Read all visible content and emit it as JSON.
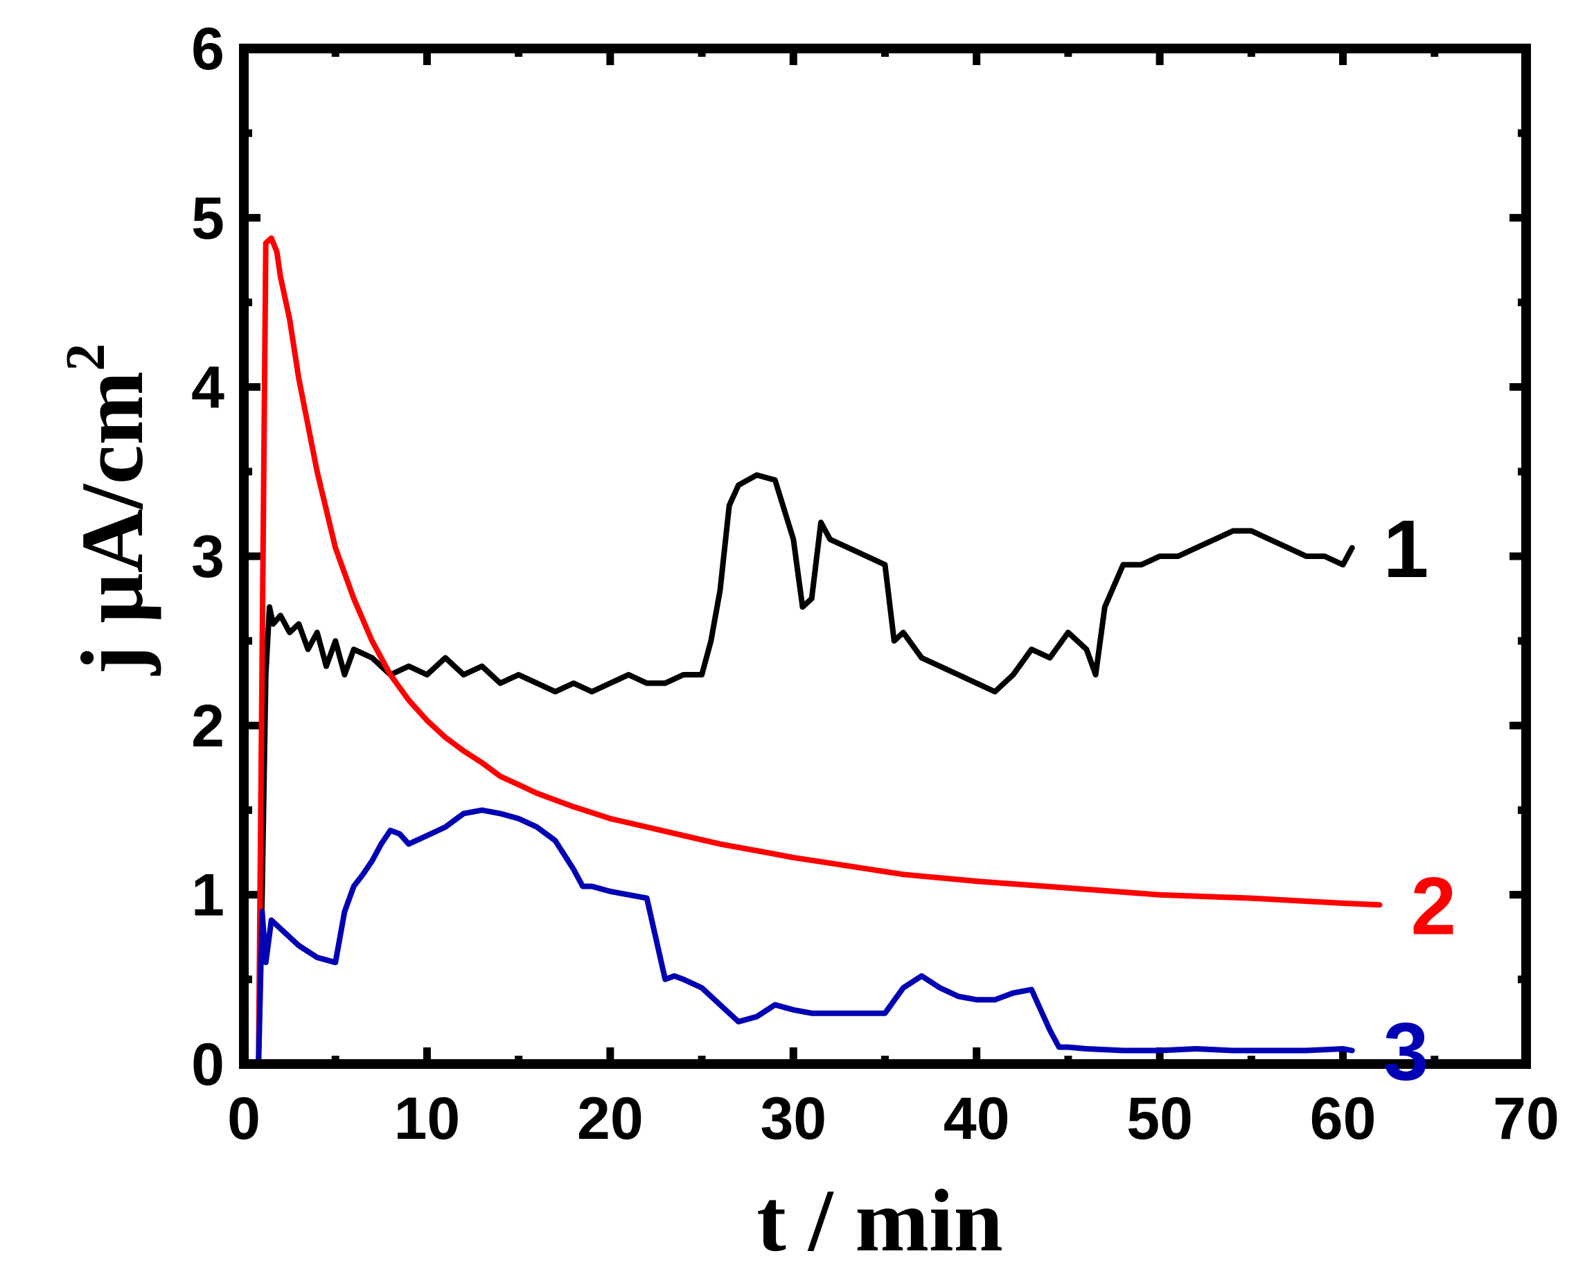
{
  "chart_data": {
    "type": "line",
    "title": "",
    "xlabel": "t / min",
    "ylabel": "j μA/cm",
    "ylabel_superscript": "2",
    "xlim": [
      0,
      70
    ],
    "ylim": [
      0,
      6
    ],
    "x_ticks": [
      0,
      10,
      20,
      30,
      40,
      50,
      60,
      70
    ],
    "y_ticks": [
      0,
      1,
      2,
      3,
      4,
      5,
      6
    ],
    "x_tick_labels": [
      "0",
      "10",
      "20",
      "30",
      "40",
      "50",
      "60",
      "70"
    ],
    "y_tick_labels": [
      "0",
      "1",
      "2",
      "3",
      "4",
      "5",
      "6"
    ],
    "grid": false,
    "legend": "none (series labelled at right end of each curve)",
    "series": [
      {
        "name": "1",
        "color": "#000000",
        "x": [
          0.8,
          1.0,
          1.2,
          1.4,
          1.6,
          2.0,
          2.5,
          3.0,
          3.5,
          4.0,
          4.5,
          5.0,
          5.5,
          6.0,
          7.0,
          8.0,
          9.0,
          10.0,
          11.0,
          12.0,
          13.0,
          14.0,
          15.0,
          16.0,
          17.0,
          18.0,
          19.0,
          20.0,
          21.0,
          22.0,
          23.0,
          24.0,
          25.0,
          25.5,
          26.0,
          26.5,
          27.0,
          28.0,
          29.0,
          30.0,
          30.5,
          31.0,
          31.5,
          32.0,
          33.0,
          34.0,
          35.0,
          35.5,
          36.0,
          37.0,
          38.0,
          39.0,
          40.0,
          41.0,
          42.0,
          43.0,
          44.0,
          45.0,
          46.0,
          46.5,
          47.0,
          48.0,
          49.0,
          50.0,
          51.0,
          52.0,
          53.0,
          54.0,
          55.0,
          56.0,
          57.0,
          58.0,
          59.0,
          60.0,
          60.5
        ],
        "y": [
          0,
          1.0,
          2.3,
          2.7,
          2.6,
          2.65,
          2.55,
          2.6,
          2.45,
          2.55,
          2.35,
          2.5,
          2.3,
          2.45,
          2.4,
          2.3,
          2.35,
          2.3,
          2.4,
          2.3,
          2.35,
          2.25,
          2.3,
          2.25,
          2.2,
          2.25,
          2.2,
          2.25,
          2.3,
          2.25,
          2.25,
          2.3,
          2.3,
          2.5,
          2.8,
          3.3,
          3.42,
          3.48,
          3.45,
          3.1,
          2.7,
          2.75,
          3.2,
          3.1,
          3.05,
          3.0,
          2.95,
          2.5,
          2.55,
          2.4,
          2.35,
          2.3,
          2.25,
          2.2,
          2.3,
          2.45,
          2.4,
          2.55,
          2.45,
          2.3,
          2.7,
          2.95,
          2.95,
          3.0,
          3.0,
          3.05,
          3.1,
          3.15,
          3.15,
          3.1,
          3.05,
          3.0,
          3.0,
          2.95,
          3.05
        ]
      },
      {
        "name": "2",
        "color": "#ff0000",
        "x": [
          0.8,
          1.2,
          1.5,
          1.8,
          2.0,
          2.5,
          3.0,
          4.0,
          5.0,
          6.0,
          7.0,
          8.0,
          9.0,
          10.0,
          11.0,
          12.0,
          13.0,
          14.0,
          15.0,
          16.0,
          18.0,
          20.0,
          22.0,
          24.0,
          26.0,
          28.0,
          30.0,
          33.0,
          36.0,
          40.0,
          45.0,
          50.0,
          55.0,
          60.0,
          62.0
        ],
        "y": [
          0,
          4.85,
          4.88,
          4.8,
          4.65,
          4.4,
          4.05,
          3.5,
          3.05,
          2.75,
          2.5,
          2.3,
          2.15,
          2.03,
          1.93,
          1.85,
          1.78,
          1.7,
          1.65,
          1.6,
          1.52,
          1.45,
          1.4,
          1.35,
          1.3,
          1.26,
          1.22,
          1.17,
          1.12,
          1.08,
          1.04,
          1.0,
          0.98,
          0.95,
          0.94
        ]
      },
      {
        "name": "3",
        "color": "#0000b4",
        "x": [
          0.8,
          1.0,
          1.2,
          1.5,
          2.0,
          3.0,
          4.0,
          5.0,
          5.5,
          6.0,
          6.5,
          7.0,
          7.5,
          8.0,
          8.5,
          9.0,
          10.0,
          11.0,
          12.0,
          13.0,
          14.0,
          15.0,
          16.0,
          17.0,
          18.0,
          18.5,
          19.0,
          20.0,
          21.0,
          22.0,
          23.0,
          23.5,
          24.0,
          25.0,
          26.0,
          27.0,
          28.0,
          29.0,
          30.0,
          31.0,
          32.0,
          33.0,
          34.0,
          35.0,
          36.0,
          37.0,
          38.0,
          39.0,
          40.0,
          41.0,
          42.0,
          43.0,
          44.0,
          44.5,
          45.0,
          46.0,
          48.0,
          50.0,
          52.0,
          54.0,
          56.0,
          58.0,
          60.0,
          60.5
        ],
        "y": [
          0,
          0.9,
          0.6,
          0.85,
          0.8,
          0.7,
          0.63,
          0.6,
          0.9,
          1.05,
          1.12,
          1.2,
          1.3,
          1.38,
          1.36,
          1.3,
          1.35,
          1.4,
          1.48,
          1.5,
          1.48,
          1.45,
          1.4,
          1.32,
          1.15,
          1.05,
          1.05,
          1.02,
          1.0,
          0.98,
          0.5,
          0.52,
          0.5,
          0.45,
          0.35,
          0.25,
          0.28,
          0.35,
          0.32,
          0.3,
          0.3,
          0.3,
          0.3,
          0.3,
          0.45,
          0.52,
          0.45,
          0.4,
          0.38,
          0.38,
          0.42,
          0.44,
          0.2,
          0.1,
          0.1,
          0.09,
          0.08,
          0.08,
          0.09,
          0.08,
          0.08,
          0.08,
          0.09,
          0.08
        ]
      }
    ]
  }
}
